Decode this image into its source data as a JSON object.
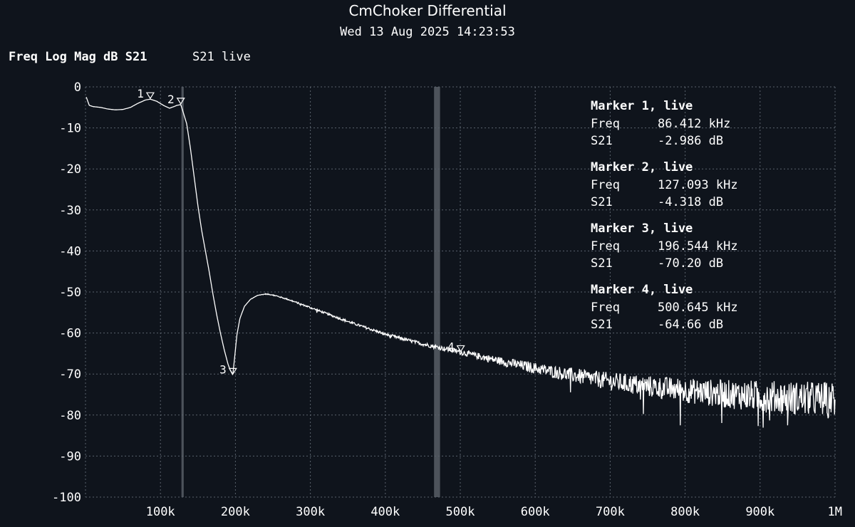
{
  "header": {
    "title": "CmChoker Differential",
    "timestamp": "Wed 13 Aug 2025 14:23:53"
  },
  "trace": {
    "format_label": "Freq Log Mag dB S21",
    "live_label": "S21 live"
  },
  "colors": {
    "background": "#0f141c",
    "trace": "#ffffff",
    "band": "#9aa0a8"
  },
  "chart_data": {
    "type": "line",
    "title": "CmChoker Differential",
    "xlabel": "",
    "ylabel": "",
    "xlim": [
      0,
      1000000
    ],
    "ylim": [
      -100,
      0
    ],
    "x_ticks": [
      {
        "value": 100000,
        "label": "100k"
      },
      {
        "value": 200000,
        "label": "200k"
      },
      {
        "value": 300000,
        "label": "300k"
      },
      {
        "value": 400000,
        "label": "400k"
      },
      {
        "value": 500000,
        "label": "500k"
      },
      {
        "value": 600000,
        "label": "600k"
      },
      {
        "value": 700000,
        "label": "700k"
      },
      {
        "value": 800000,
        "label": "800k"
      },
      {
        "value": 900000,
        "label": "900k"
      },
      {
        "value": 1000000,
        "label": "1M"
      }
    ],
    "y_ticks": [
      {
        "value": 0,
        "label": "0"
      },
      {
        "value": -10,
        "label": "-10"
      },
      {
        "value": -20,
        "label": "-20"
      },
      {
        "value": -30,
        "label": "-30"
      },
      {
        "value": -40,
        "label": "-40"
      },
      {
        "value": -50,
        "label": "-50"
      },
      {
        "value": -60,
        "label": "-60"
      },
      {
        "value": -70,
        "label": "-70"
      },
      {
        "value": -80,
        "label": "-80"
      },
      {
        "value": -90,
        "label": "-90"
      },
      {
        "value": -100,
        "label": "-100"
      }
    ],
    "grid": true,
    "highlight_bands": [
      {
        "from": 128000,
        "to": 131000
      },
      {
        "from": 465000,
        "to": 473000
      }
    ],
    "series": [
      {
        "x": [
          1000,
          5000,
          10000,
          20000,
          30000,
          40000,
          50000,
          60000,
          70000,
          80000,
          86412,
          95000,
          105000,
          112000,
          118000,
          122000,
          127093,
          130000,
          135000,
          140000,
          145000,
          150000,
          155000,
          160000,
          165000,
          170000,
          175000,
          180000,
          185000,
          190000,
          193000,
          196544,
          199000,
          202000,
          206000,
          212000,
          220000,
          230000,
          240000,
          250000,
          270000,
          300000,
          350000,
          400000,
          450000,
          500645,
          550000,
          600000,
          650000,
          700000,
          750000,
          800000,
          850000,
          900000,
          950000,
          1000000
        ],
        "y": [
          -2.5,
          -4.5,
          -4.8,
          -5.0,
          -5.4,
          -5.6,
          -5.5,
          -5.0,
          -4.0,
          -3.2,
          -2.986,
          -3.5,
          -4.6,
          -5.2,
          -4.8,
          -4.5,
          -4.318,
          -6.0,
          -9.0,
          -15.0,
          -22.0,
          -29.0,
          -35.0,
          -40.0,
          -45.0,
          -50.5,
          -55.5,
          -60.0,
          -64.0,
          -67.5,
          -69.0,
          -70.2,
          -66.0,
          -60.5,
          -56.5,
          -53.5,
          -51.8,
          -50.8,
          -50.5,
          -50.7,
          -51.8,
          -53.8,
          -57.2,
          -60.3,
          -62.7,
          -64.66,
          -66.7,
          -68.6,
          -70.3,
          -71.8,
          -73.0,
          -74.0,
          -74.8,
          -75.4,
          -75.9,
          -76.2
        ],
        "noise_dB": [
          0,
          0,
          0,
          0,
          0,
          0,
          0,
          0,
          0,
          0,
          0,
          0,
          0,
          0,
          0,
          0,
          0,
          0,
          0,
          0,
          0,
          0,
          0,
          0,
          0,
          0,
          0,
          0,
          0,
          0,
          0,
          0,
          0,
          0,
          0,
          0,
          0.1,
          0.1,
          0.2,
          0.2,
          0.3,
          0.4,
          0.5,
          0.6,
          0.8,
          1.2,
          1.8,
          2.5,
          3.2,
          4.0,
          4.8,
          5.5,
          6.2,
          7.0,
          7.5,
          8.0
        ]
      }
    ],
    "markers": [
      {
        "id": "1",
        "label": "1",
        "freq": 86412,
        "value": -2.986,
        "header": "Marker 1, live",
        "freq_text": "86.412 kHz",
        "value_text": "-2.986 dB"
      },
      {
        "id": "2",
        "label": "2",
        "freq": 127093,
        "value": -4.318,
        "header": "Marker 2, live",
        "freq_text": "127.093 kHz",
        "value_text": "-4.318 dB"
      },
      {
        "id": "3",
        "label": "3",
        "freq": 196544,
        "value": -70.2,
        "header": "Marker 3, live",
        "freq_text": "196.544 kHz",
        "value_text": "-70.20 dB"
      },
      {
        "id": "4",
        "label": "4",
        "freq": 500645,
        "value": -64.66,
        "header": "Marker 4, live",
        "freq_text": "500.645 kHz",
        "value_text": "-64.66 dB"
      }
    ],
    "marker_table": {
      "freq_label": "Freq",
      "value_label": "S21"
    }
  }
}
